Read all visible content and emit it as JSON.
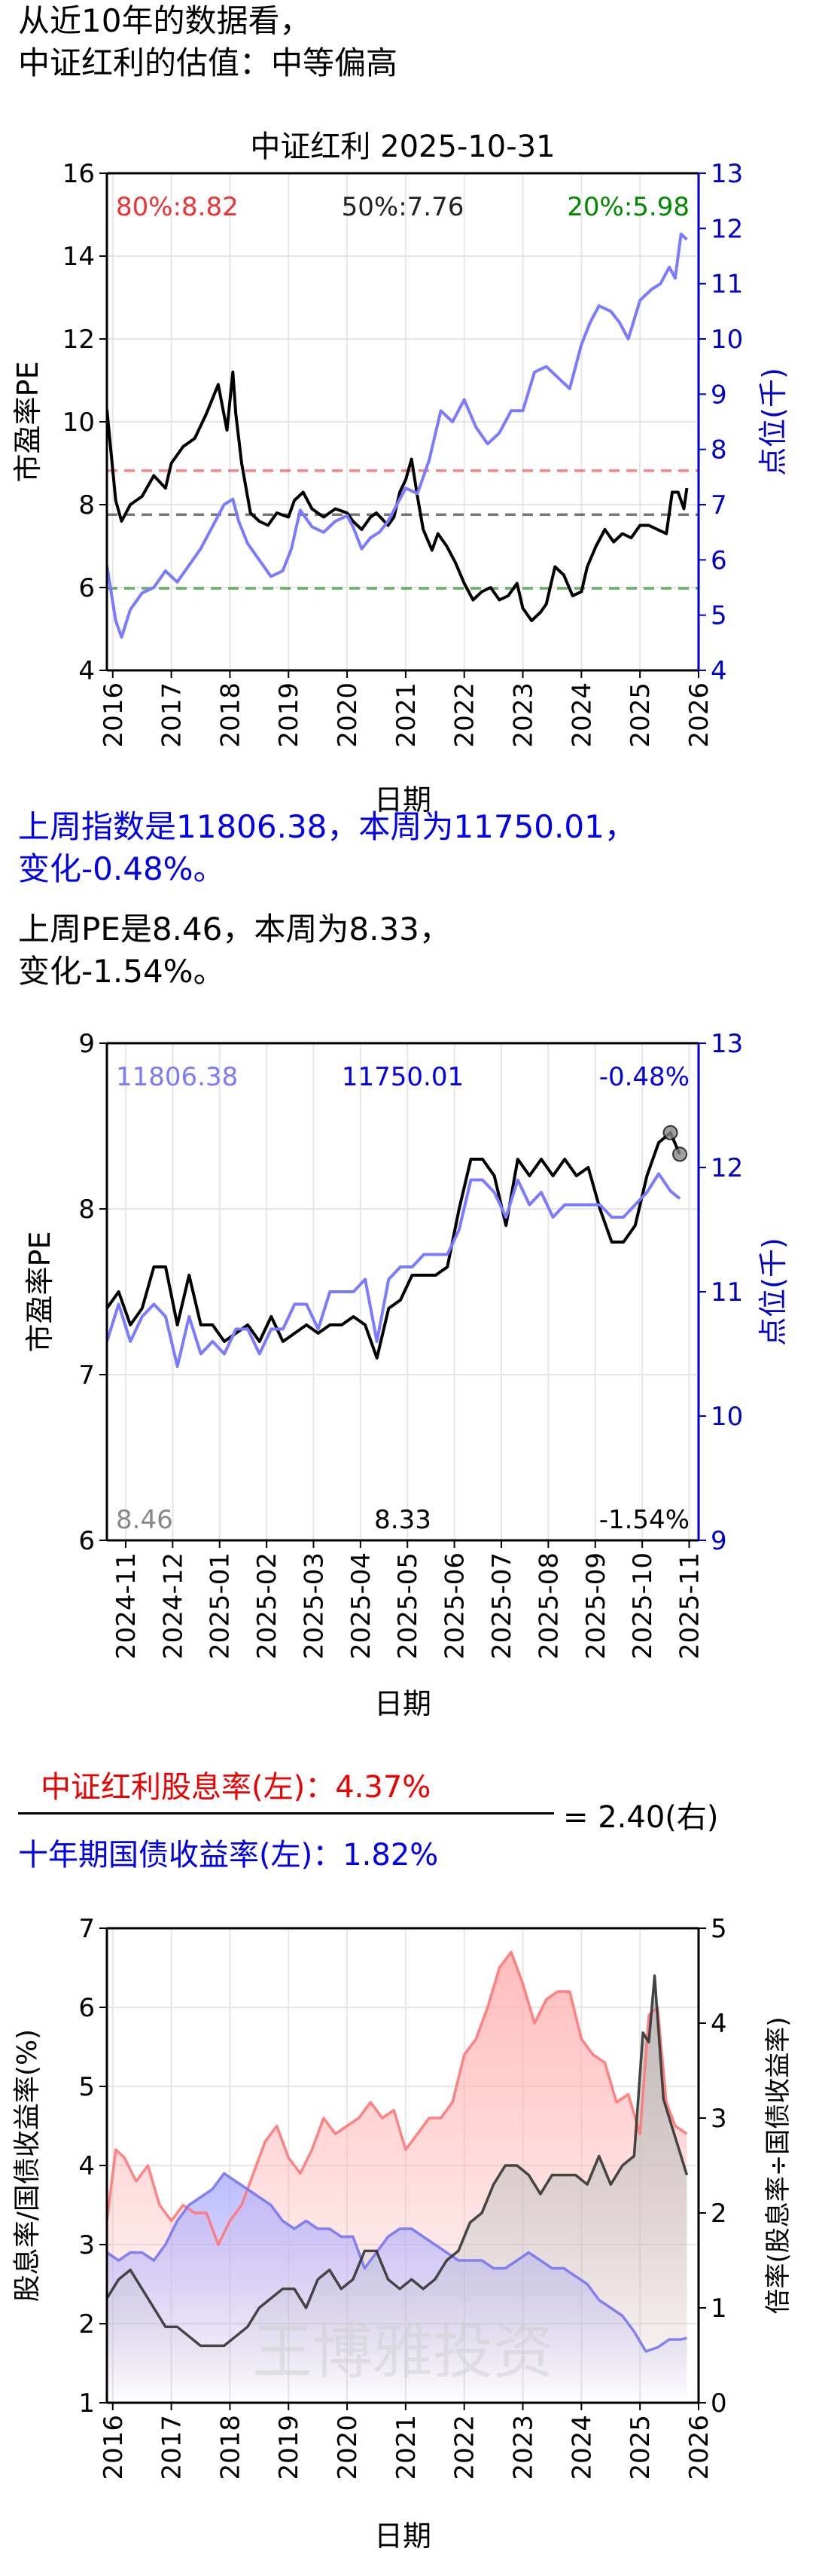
{
  "intro": {
    "line1": "从近10年的数据看，",
    "line2": "中证红利的估值：中等偏高"
  },
  "colors": {
    "pe_line": "#000000",
    "index_line": "#7b7bff",
    "axis_right": "#0000cc",
    "pct80": "#ee3333",
    "pct50": "#222222",
    "pct20": "#008800",
    "dividend": "#ff7777",
    "bond": "#7777ee",
    "ratio": "#333333",
    "grid": "#e6e6e6"
  },
  "weekly_text": {
    "index_line1": "上周指数是11806.38，本周为11750.01，",
    "index_line2": "变化-0.48%。",
    "pe_line1": "上周PE是8.46，本周为8.33，",
    "pe_line2": "变化-1.54%。"
  },
  "ratio_header": {
    "numerator": "中证红利股息率(左)：4.37%",
    "denominator": "十年期国债收益率(左)：1.82%",
    "result": "= 2.40(右)"
  },
  "watermark": "王博雅投资",
  "chart_data": [
    {
      "id": "chart1",
      "type": "line",
      "title": "中证红利  2025-10-31",
      "xlabel": "日期",
      "ylabel": "市盈率PE",
      "ylabel_right": "点位(千)",
      "ylim": [
        4,
        16
      ],
      "ylim_right": [
        4,
        13
      ],
      "yticks": [
        4,
        6,
        8,
        10,
        12,
        14,
        16
      ],
      "yticks_right": [
        4,
        5,
        6,
        7,
        8,
        9,
        10,
        11,
        12,
        13
      ],
      "xlim": [
        2015.9,
        2026.0
      ],
      "xticks": [
        2016,
        2017,
        2018,
        2019,
        2020,
        2021,
        2022,
        2023,
        2024,
        2025,
        2026
      ],
      "grid": true,
      "percentiles": [
        {
          "label": "80%:8.82",
          "value": 8.82,
          "color": "#ee3333"
        },
        {
          "label": "50%:7.76",
          "value": 7.76,
          "color": "#222222"
        },
        {
          "label": "20%:5.98",
          "value": 5.98,
          "color": "#008800"
        }
      ],
      "series": [
        {
          "axis": "left",
          "color": "#000000",
          "x": [
            2015.9,
            2016.05,
            2016.15,
            2016.3,
            2016.5,
            2016.7,
            2016.9,
            2017.0,
            2017.2,
            2017.4,
            2017.6,
            2017.8,
            2017.95,
            2018.05,
            2018.1,
            2018.2,
            2018.35,
            2018.5,
            2018.65,
            2018.8,
            2019.0,
            2019.1,
            2019.25,
            2019.4,
            2019.6,
            2019.8,
            2020.0,
            2020.1,
            2020.25,
            2020.4,
            2020.5,
            2020.7,
            2020.8,
            2020.9,
            2021.0,
            2021.1,
            2021.2,
            2021.3,
            2021.45,
            2021.55,
            2021.7,
            2021.85,
            2022.0,
            2022.15,
            2022.3,
            2022.45,
            2022.6,
            2022.75,
            2022.9,
            2023.0,
            2023.15,
            2023.3,
            2023.4,
            2023.55,
            2023.7,
            2023.85,
            2024.0,
            2024.1,
            2024.25,
            2024.4,
            2024.55,
            2024.7,
            2024.85,
            2025.0,
            2025.15,
            2025.3,
            2025.45,
            2025.55,
            2025.65,
            2025.75,
            2025.8
          ],
          "y": [
            10.3,
            8.1,
            7.6,
            8.0,
            8.2,
            8.7,
            8.4,
            9.0,
            9.4,
            9.6,
            10.2,
            10.9,
            9.8,
            11.2,
            10.2,
            9.0,
            7.8,
            7.6,
            7.5,
            7.8,
            7.7,
            8.1,
            8.3,
            7.9,
            7.7,
            7.9,
            7.8,
            7.6,
            7.4,
            7.7,
            7.8,
            7.5,
            7.7,
            8.3,
            8.6,
            9.1,
            8.2,
            7.4,
            6.9,
            7.3,
            7.0,
            6.6,
            6.1,
            5.7,
            5.9,
            6.0,
            5.7,
            5.8,
            6.1,
            5.5,
            5.2,
            5.4,
            5.6,
            6.5,
            6.3,
            5.8,
            5.9,
            6.5,
            7.0,
            7.4,
            7.1,
            7.3,
            7.2,
            7.5,
            7.5,
            7.4,
            7.3,
            8.3,
            8.3,
            7.9,
            8.4
          ]
        },
        {
          "axis": "right",
          "color": "#7b7bff",
          "x": [
            2015.9,
            2016.05,
            2016.15,
            2016.3,
            2016.5,
            2016.7,
            2016.9,
            2017.1,
            2017.3,
            2017.5,
            2017.7,
            2017.9,
            2018.05,
            2018.15,
            2018.3,
            2018.5,
            2018.7,
            2018.9,
            2019.05,
            2019.2,
            2019.4,
            2019.6,
            2019.8,
            2020.0,
            2020.1,
            2020.25,
            2020.4,
            2020.55,
            2020.7,
            2020.85,
            2021.0,
            2021.2,
            2021.4,
            2021.6,
            2021.8,
            2022.0,
            2022.2,
            2022.4,
            2022.6,
            2022.8,
            2023.0,
            2023.2,
            2023.4,
            2023.6,
            2023.8,
            2024.0,
            2024.15,
            2024.3,
            2024.5,
            2024.65,
            2024.8,
            2025.0,
            2025.2,
            2025.35,
            2025.5,
            2025.6,
            2025.7,
            2025.8
          ],
          "y": [
            5.9,
            4.9,
            4.6,
            5.1,
            5.4,
            5.5,
            5.8,
            5.6,
            5.9,
            6.2,
            6.6,
            7.0,
            7.1,
            6.7,
            6.3,
            6.0,
            5.7,
            5.8,
            6.2,
            6.9,
            6.6,
            6.5,
            6.7,
            6.8,
            6.6,
            6.2,
            6.4,
            6.5,
            6.7,
            7.0,
            7.3,
            7.2,
            7.8,
            8.7,
            8.5,
            8.9,
            8.4,
            8.1,
            8.3,
            8.7,
            8.7,
            9.4,
            9.5,
            9.3,
            9.1,
            9.9,
            10.3,
            10.6,
            10.5,
            10.3,
            10.0,
            10.7,
            10.9,
            11.0,
            11.3,
            11.1,
            11.9,
            11.8
          ]
        }
      ]
    },
    {
      "id": "chart2",
      "type": "line",
      "xlabel": "日期",
      "ylabel": "市盈率PE",
      "ylabel_right": "点位(千)",
      "ylim": [
        6,
        9
      ],
      "ylim_right": [
        9,
        13
      ],
      "yticks": [
        6,
        7,
        8,
        9
      ],
      "yticks_right": [
        9,
        10,
        11,
        12,
        13
      ],
      "xlim": [
        -0.4,
        12.2
      ],
      "xticks": [
        0,
        1,
        2,
        3,
        4,
        5,
        6,
        7,
        8,
        9,
        10,
        11,
        12
      ],
      "xtick_labels": [
        "2024-11",
        "2024-12",
        "2025-01",
        "2025-02",
        "2025-03",
        "2025-04",
        "2025-05",
        "2025-06",
        "2025-07",
        "2025-08",
        "2025-09",
        "2025-10",
        "2025-11"
      ],
      "grid": true,
      "annotations": {
        "index_prev": "11806.38",
        "index_curr": "11750.01",
        "index_change": "-0.48%",
        "pe_prev": "8.46",
        "pe_curr": "8.33",
        "pe_change": "-1.54%"
      },
      "series": [
        {
          "axis": "left",
          "color": "#000000",
          "x": [
            -0.4,
            -0.15,
            0.1,
            0.35,
            0.6,
            0.85,
            1.1,
            1.35,
            1.6,
            1.85,
            2.1,
            2.35,
            2.6,
            2.85,
            3.1,
            3.35,
            3.6,
            3.85,
            4.1,
            4.35,
            4.6,
            4.85,
            5.1,
            5.35,
            5.6,
            5.85,
            6.1,
            6.35,
            6.6,
            6.85,
            7.1,
            7.35,
            7.6,
            7.85,
            8.1,
            8.35,
            8.6,
            8.85,
            9.1,
            9.35,
            9.6,
            9.85,
            10.1,
            10.35,
            10.6,
            10.85,
            11.1,
            11.35,
            11.6,
            11.8
          ],
          "y": [
            7.4,
            7.5,
            7.3,
            7.4,
            7.65,
            7.65,
            7.3,
            7.6,
            7.3,
            7.3,
            7.2,
            7.25,
            7.3,
            7.2,
            7.35,
            7.2,
            7.25,
            7.3,
            7.25,
            7.3,
            7.3,
            7.35,
            7.3,
            7.1,
            7.4,
            7.45,
            7.6,
            7.6,
            7.6,
            7.65,
            8.0,
            8.3,
            8.3,
            8.2,
            7.9,
            8.3,
            8.2,
            8.3,
            8.2,
            8.3,
            8.2,
            8.25,
            8.0,
            7.8,
            7.8,
            7.9,
            8.2,
            8.4,
            8.46,
            8.33
          ]
        },
        {
          "axis": "right",
          "color": "#7b7bff",
          "x": [
            -0.4,
            -0.15,
            0.1,
            0.35,
            0.6,
            0.85,
            1.1,
            1.35,
            1.6,
            1.85,
            2.1,
            2.35,
            2.6,
            2.85,
            3.1,
            3.35,
            3.6,
            3.85,
            4.1,
            4.35,
            4.6,
            4.85,
            5.1,
            5.35,
            5.6,
            5.85,
            6.1,
            6.35,
            6.6,
            6.85,
            7.1,
            7.35,
            7.6,
            7.85,
            8.1,
            8.35,
            8.6,
            8.85,
            9.1,
            9.35,
            9.6,
            9.85,
            10.1,
            10.35,
            10.6,
            10.85,
            11.1,
            11.35,
            11.6,
            11.8
          ],
          "y": [
            10.6,
            10.9,
            10.6,
            10.8,
            10.9,
            10.8,
            10.4,
            10.8,
            10.5,
            10.6,
            10.5,
            10.7,
            10.7,
            10.5,
            10.7,
            10.7,
            10.9,
            10.9,
            10.7,
            11.0,
            11.0,
            11.0,
            11.1,
            10.6,
            11.1,
            11.2,
            11.2,
            11.3,
            11.3,
            11.3,
            11.5,
            11.9,
            11.9,
            11.8,
            11.6,
            11.9,
            11.7,
            11.8,
            11.6,
            11.7,
            11.7,
            11.7,
            11.7,
            11.6,
            11.6,
            11.7,
            11.8,
            11.95,
            11.81,
            11.75
          ]
        }
      ]
    },
    {
      "id": "chart3",
      "type": "area",
      "xlabel": "日期",
      "ylabel": "股息率/国债收益率(%)",
      "ylabel_right": "倍率(股息率÷国债收益率)",
      "ylim": [
        1,
        7
      ],
      "ylim_right": [
        0,
        5
      ],
      "yticks": [
        1,
        2,
        3,
        4,
        5,
        6,
        7
      ],
      "yticks_right": [
        0,
        1,
        2,
        3,
        4,
        5
      ],
      "xlim": [
        2015.9,
        2026.0
      ],
      "xticks": [
        2016,
        2017,
        2018,
        2019,
        2020,
        2021,
        2022,
        2023,
        2024,
        2025,
        2026
      ],
      "grid": true,
      "series": [
        {
          "axis": "left",
          "color": "#ff7777",
          "fill": "#ffb0b0",
          "x": [
            2015.9,
            2016.05,
            2016.2,
            2016.4,
            2016.6,
            2016.8,
            2017.0,
            2017.2,
            2017.4,
            2017.6,
            2017.8,
            2018.0,
            2018.2,
            2018.4,
            2018.6,
            2018.8,
            2019.0,
            2019.2,
            2019.4,
            2019.6,
            2019.8,
            2020.0,
            2020.2,
            2020.4,
            2020.6,
            2020.8,
            2021.0,
            2021.2,
            2021.4,
            2021.6,
            2021.8,
            2022.0,
            2022.2,
            2022.4,
            2022.6,
            2022.8,
            2023.0,
            2023.2,
            2023.4,
            2023.6,
            2023.8,
            2024.0,
            2024.2,
            2024.4,
            2024.6,
            2024.8,
            2025.0,
            2025.15,
            2025.3,
            2025.45,
            2025.6,
            2025.8
          ],
          "y": [
            3.3,
            4.2,
            4.1,
            3.8,
            4.0,
            3.5,
            3.3,
            3.5,
            3.4,
            3.4,
            3.0,
            3.3,
            3.5,
            3.9,
            4.3,
            4.5,
            4.1,
            3.9,
            4.2,
            4.6,
            4.4,
            4.5,
            4.6,
            4.8,
            4.6,
            4.7,
            4.2,
            4.4,
            4.6,
            4.6,
            4.8,
            5.4,
            5.6,
            6.0,
            6.5,
            6.7,
            6.3,
            5.8,
            6.1,
            6.2,
            6.2,
            5.6,
            5.4,
            5.3,
            4.8,
            4.9,
            4.4,
            5.9,
            6.0,
            4.8,
            4.5,
            4.4
          ]
        },
        {
          "axis": "left",
          "color": "#7777ee",
          "fill": "#b0b0ff",
          "x": [
            2015.9,
            2016.1,
            2016.3,
            2016.5,
            2016.7,
            2016.9,
            2017.1,
            2017.3,
            2017.5,
            2017.7,
            2017.9,
            2018.1,
            2018.3,
            2018.5,
            2018.7,
            2018.9,
            2019.1,
            2019.3,
            2019.5,
            2019.7,
            2019.9,
            2020.1,
            2020.3,
            2020.5,
            2020.7,
            2020.9,
            2021.1,
            2021.3,
            2021.5,
            2021.7,
            2021.9,
            2022.1,
            2022.3,
            2022.5,
            2022.7,
            2022.9,
            2023.1,
            2023.3,
            2023.5,
            2023.7,
            2023.9,
            2024.1,
            2024.3,
            2024.5,
            2024.7,
            2024.9,
            2025.1,
            2025.3,
            2025.5,
            2025.7,
            2025.8
          ],
          "y": [
            2.9,
            2.8,
            2.9,
            2.9,
            2.8,
            3.0,
            3.3,
            3.5,
            3.6,
            3.7,
            3.9,
            3.8,
            3.7,
            3.6,
            3.5,
            3.3,
            3.2,
            3.3,
            3.2,
            3.2,
            3.1,
            3.1,
            2.7,
            2.9,
            3.1,
            3.2,
            3.2,
            3.1,
            3.0,
            2.9,
            2.8,
            2.8,
            2.8,
            2.7,
            2.7,
            2.8,
            2.9,
            2.8,
            2.7,
            2.7,
            2.6,
            2.5,
            2.3,
            2.2,
            2.1,
            1.9,
            1.65,
            1.7,
            1.8,
            1.8,
            1.82
          ]
        },
        {
          "axis": "right",
          "color": "#333333",
          "fill": "#b0bcbc",
          "x": [
            2015.9,
            2016.1,
            2016.3,
            2016.5,
            2016.7,
            2016.9,
            2017.1,
            2017.3,
            2017.5,
            2017.7,
            2017.9,
            2018.1,
            2018.3,
            2018.5,
            2018.7,
            2018.9,
            2019.1,
            2019.3,
            2019.5,
            2019.7,
            2019.9,
            2020.1,
            2020.3,
            2020.5,
            2020.7,
            2020.9,
            2021.1,
            2021.3,
            2021.5,
            2021.7,
            2021.9,
            2022.1,
            2022.3,
            2022.5,
            2022.7,
            2022.9,
            2023.1,
            2023.3,
            2023.5,
            2023.7,
            2023.9,
            2024.1,
            2024.3,
            2024.5,
            2024.7,
            2024.9,
            2025.05,
            2025.15,
            2025.25,
            2025.4,
            2025.55,
            2025.7,
            2025.8
          ],
          "y": [
            1.1,
            1.3,
            1.4,
            1.2,
            1.0,
            0.8,
            0.8,
            0.7,
            0.6,
            0.6,
            0.6,
            0.7,
            0.8,
            1.0,
            1.1,
            1.2,
            1.2,
            1.0,
            1.3,
            1.4,
            1.2,
            1.3,
            1.6,
            1.6,
            1.3,
            1.2,
            1.3,
            1.2,
            1.3,
            1.5,
            1.6,
            1.9,
            2.0,
            2.3,
            2.5,
            2.5,
            2.4,
            2.2,
            2.4,
            2.4,
            2.4,
            2.3,
            2.6,
            2.3,
            2.5,
            2.6,
            3.9,
            3.8,
            4.5,
            3.2,
            2.9,
            2.6,
            2.4
          ]
        }
      ]
    }
  ]
}
